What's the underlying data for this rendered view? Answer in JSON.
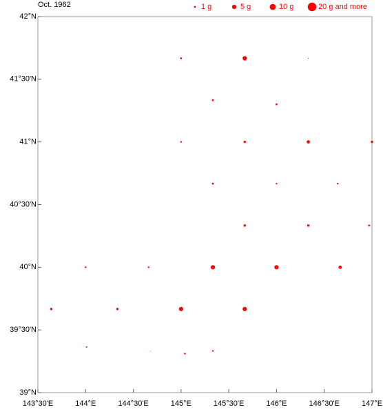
{
  "chart_data": {
    "type": "scatter",
    "title": "Oct. 1962",
    "color": "#ff0000",
    "x": [
      145,
      145.667,
      146.333,
      145.333,
      146,
      145,
      145.667,
      146.333,
      147,
      145.333,
      146,
      146.64,
      145.667,
      146.333,
      146.97,
      144,
      144.66,
      145.333,
      146,
      146.667,
      143.64,
      144.333,
      145,
      145.667,
      144.01,
      144.68,
      145.04,
      145.333
    ],
    "y": [
      41.667,
      41.667,
      41.667,
      41.333,
      41.3,
      41,
      41,
      41,
      41,
      40.667,
      40.667,
      40.667,
      40.333,
      40.333,
      40.333,
      40,
      40,
      40,
      40,
      40,
      39.667,
      39.667,
      39.667,
      39.667,
      39.364,
      39.33,
      39.31,
      39.333
    ],
    "values": [
      1,
      5,
      0.2,
      1,
      1,
      0.7,
      1.5,
      3,
      1.5,
      1,
      0.7,
      0.7,
      1.5,
      1.5,
      1,
      0.7,
      0.7,
      5,
      5,
      3,
      1.5,
      1.5,
      5,
      5,
      0.5,
      0.1,
      0.7,
      0.7
    ],
    "xlim": [
      143.5,
      147
    ],
    "ylim": [
      39,
      42
    ],
    "xticks": [
      {
        "value": 143.5,
        "label": "143°30'E"
      },
      {
        "value": 144,
        "label": "144°E"
      },
      {
        "value": 144.5,
        "label": "144°30'E"
      },
      {
        "value": 145,
        "label": "145°E"
      },
      {
        "value": 145.5,
        "label": "145°30'E"
      },
      {
        "value": 146,
        "label": "146°E"
      },
      {
        "value": 146.5,
        "label": "146°30'E"
      },
      {
        "value": 147,
        "label": "147°E"
      }
    ],
    "yticks": [
      {
        "value": 39,
        "label": "39°N"
      },
      {
        "value": 39.5,
        "label": "39°30'N"
      },
      {
        "value": 40,
        "label": "40°N"
      },
      {
        "value": 40.5,
        "label": "40°30'N"
      },
      {
        "value": 41,
        "label": "41°N"
      },
      {
        "value": 41.5,
        "label": "41°30'N"
      },
      {
        "value": 42,
        "label": "42°N"
      }
    ],
    "legend": [
      {
        "value": 1,
        "label": "1 g"
      },
      {
        "value": 5,
        "label": "5 g"
      },
      {
        "value": 10,
        "label": "10 g"
      },
      {
        "value": 20,
        "label": "20 g and more"
      }
    ]
  }
}
